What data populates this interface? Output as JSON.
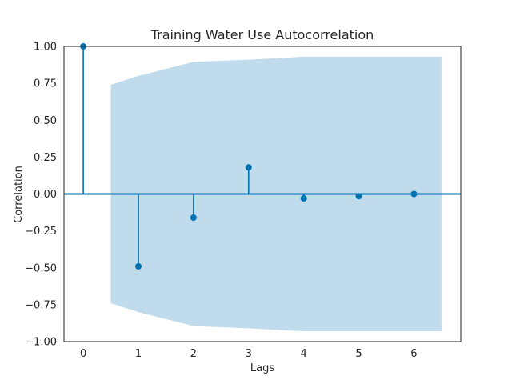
{
  "chart_data": {
    "type": "stem",
    "title": "Training Water Use Autocorrelation",
    "xlabel": "Lags",
    "ylabel": "Correlation",
    "xlim": [
      -0.35,
      6.85
    ],
    "ylim": [
      -1.0,
      1.0
    ],
    "x_ticks": [
      0,
      1,
      2,
      3,
      4,
      5,
      6
    ],
    "y_ticks": [
      -1.0,
      -0.75,
      -0.5,
      -0.25,
      0.0,
      0.25,
      0.5,
      0.75,
      1.0
    ],
    "y_tick_labels": [
      "−1.00",
      "−0.75",
      "−0.50",
      "−0.25",
      "0.00",
      "0.25",
      "0.50",
      "0.75",
      "1.00"
    ],
    "grid": false,
    "lags": [
      0,
      1,
      2,
      3,
      4,
      5,
      6
    ],
    "values": [
      1.0,
      -0.49,
      -0.16,
      0.18,
      -0.03,
      -0.015,
      0.0
    ],
    "confidence_interval": {
      "x": [
        0.5,
        1,
        2,
        3,
        4,
        5,
        6,
        6.5
      ],
      "upper": [
        0.74,
        0.8,
        0.895,
        0.91,
        0.93,
        0.93,
        0.93,
        0.93
      ],
      "lower": [
        -0.74,
        -0.8,
        -0.895,
        -0.91,
        -0.93,
        -0.93,
        -0.93,
        -0.93
      ]
    },
    "colors": {
      "stem": "#0072b2",
      "band": "#c0dbeb",
      "zero_line": "#0072b2",
      "axes": "#262626"
    }
  }
}
